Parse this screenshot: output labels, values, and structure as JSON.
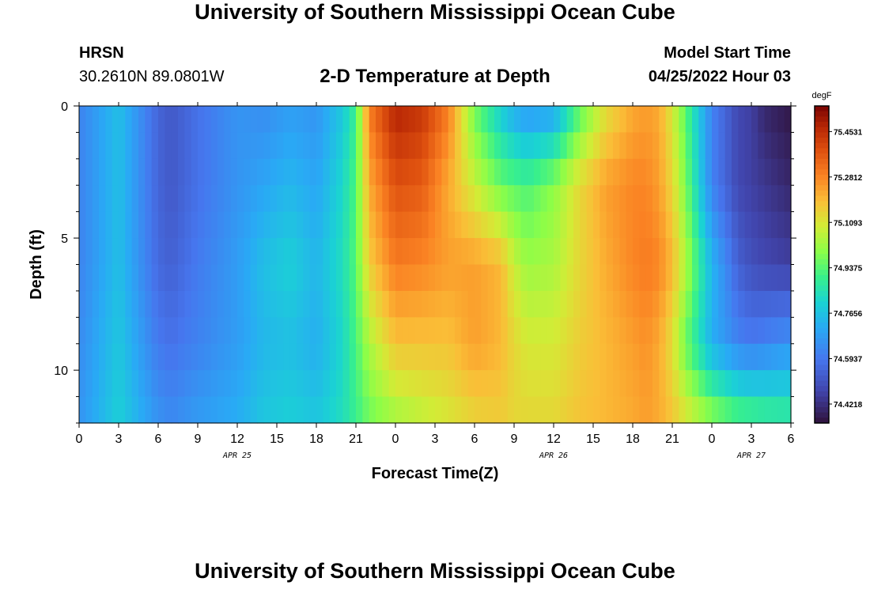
{
  "header": {
    "title": "University of Southern Mississippi Ocean Cube",
    "station": "HRSN",
    "coords": "30.2610N  89.0801W",
    "subtitle": "2-D Temperature at Depth",
    "start_label": "Model Start Time",
    "start_value": "04/25/2022 Hour 03"
  },
  "footer": {
    "title": "University of Southern Mississippi Ocean Cube"
  },
  "chart_data": {
    "type": "heatmap",
    "title": "2-D Temperature at Depth",
    "xlabel": "Forecast Time(Z)",
    "ylabel": "Depth (ft)",
    "x_range_hours": [
      0,
      54
    ],
    "y_range_ft": [
      0,
      12
    ],
    "y_inverted": true,
    "x_tick_labels": [
      "0",
      "3",
      "6",
      "9",
      "12",
      "15",
      "18",
      "21",
      "0",
      "3",
      "6",
      "9",
      "12",
      "15",
      "18",
      "21",
      "0",
      "3",
      "6"
    ],
    "y_tick_labels": [
      "0",
      "5",
      "10"
    ],
    "y_tick_values": [
      0,
      5,
      10
    ],
    "date_labels": [
      {
        "label": "APR 25",
        "hour": 12
      },
      {
        "label": "APR 26",
        "hour": 36
      },
      {
        "label": "APR 27",
        "hour": 51
      }
    ],
    "colorbar": {
      "unit": "degF",
      "range": [
        74.35,
        75.55
      ],
      "tick_values": [
        75.4531,
        75.2812,
        75.1093,
        74.9375,
        74.7656,
        74.5937,
        74.4218
      ],
      "tick_labels": [
        "75.4531",
        "75.2812",
        "75.1093",
        "74.9375",
        "74.7656",
        "74.5937",
        "74.4218"
      ]
    },
    "time_hours": [
      0,
      3,
      6,
      7,
      9,
      12,
      14,
      16,
      18,
      20,
      21,
      22,
      24,
      26,
      28,
      30,
      32,
      33,
      34,
      36,
      38,
      40,
      42,
      43,
      44,
      45,
      46,
      48,
      50,
      51,
      52,
      54
    ],
    "depth_ft": [
      0,
      3,
      6,
      9,
      12
    ],
    "temperature_degF": [
      [
        74.62,
        74.76,
        74.55,
        74.52,
        74.58,
        74.66,
        74.64,
        74.68,
        74.66,
        74.78,
        74.9,
        75.3,
        75.48,
        75.44,
        75.3,
        74.96,
        74.78,
        74.7,
        74.66,
        74.68,
        74.93,
        75.12,
        75.22,
        75.24,
        75.22,
        75.1,
        74.94,
        74.62,
        74.48,
        74.46,
        74.4,
        74.36
      ],
      [
        74.62,
        74.76,
        74.55,
        74.52,
        74.58,
        74.66,
        74.7,
        74.74,
        74.7,
        74.82,
        74.93,
        75.22,
        75.38,
        75.36,
        75.22,
        75.08,
        74.96,
        74.94,
        74.92,
        75.0,
        75.14,
        75.24,
        75.28,
        75.28,
        75.24,
        75.14,
        74.98,
        74.62,
        74.48,
        74.46,
        74.44,
        74.4
      ],
      [
        74.62,
        74.76,
        74.56,
        74.54,
        74.6,
        74.68,
        74.76,
        74.8,
        74.74,
        74.84,
        74.94,
        75.16,
        75.3,
        75.28,
        75.24,
        75.24,
        75.2,
        75.08,
        75.02,
        75.04,
        75.14,
        75.22,
        75.28,
        75.3,
        75.28,
        75.2,
        75.05,
        74.74,
        74.54,
        74.5,
        74.48,
        74.46
      ],
      [
        74.64,
        74.78,
        74.6,
        74.58,
        74.62,
        74.68,
        74.74,
        74.76,
        74.72,
        74.82,
        74.92,
        75.04,
        75.18,
        75.18,
        75.18,
        75.24,
        75.2,
        75.14,
        75.1,
        75.1,
        75.16,
        75.2,
        75.24,
        75.26,
        75.22,
        75.12,
        74.96,
        74.72,
        74.62,
        74.6,
        74.62,
        74.66
      ],
      [
        74.66,
        74.8,
        74.66,
        74.64,
        74.68,
        74.72,
        74.78,
        74.8,
        74.78,
        74.84,
        74.9,
        74.96,
        75.02,
        75.06,
        75.1,
        75.14,
        75.16,
        75.14,
        75.14,
        75.14,
        75.18,
        75.2,
        75.22,
        75.24,
        75.22,
        75.18,
        75.12,
        75.02,
        74.95,
        74.94,
        74.92,
        74.9
      ]
    ]
  }
}
